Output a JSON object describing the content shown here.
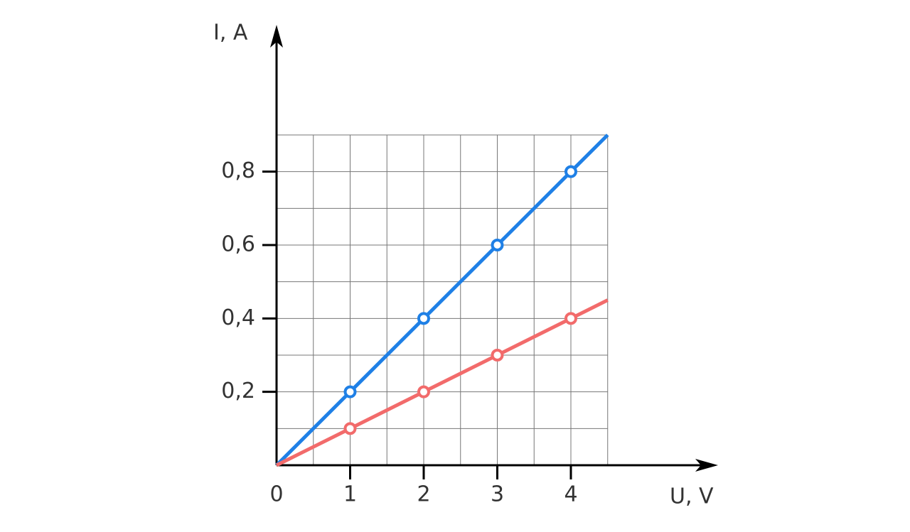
{
  "chart_data": {
    "type": "line",
    "x_label": "U, V",
    "y_label": "I, A",
    "x": [
      0,
      1,
      2,
      3,
      4,
      4.5
    ],
    "series": [
      {
        "color": "#1f80e6",
        "values": [
          0,
          0.2,
          0.4,
          0.6,
          0.8,
          0.9
        ]
      },
      {
        "color": "#f26b6b",
        "values": [
          0,
          0.1,
          0.2,
          0.3,
          0.4,
          0.45
        ]
      }
    ],
    "xlim": [
      0,
      6
    ],
    "ylim": [
      0,
      1.2
    ],
    "xticks": [
      0,
      1,
      2,
      3,
      4
    ],
    "yticks": [
      {
        "value": 0.2,
        "label": "0,2"
      },
      {
        "value": 0.4,
        "label": "0,4"
      },
      {
        "value": 0.6,
        "label": "0,6"
      },
      {
        "value": 0.8,
        "label": "0,8"
      }
    ],
    "grid": true
  }
}
